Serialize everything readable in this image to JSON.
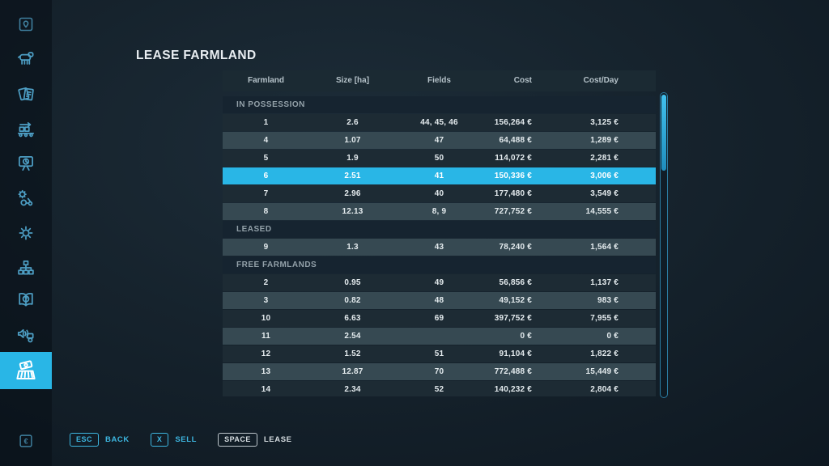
{
  "title": "LEASE FARMLAND",
  "colors": {
    "accent": "#29b6e6",
    "selected_row_bg": "#29b6e6",
    "row_dark": "#1d2b34",
    "row_light": "#364952",
    "sidebar_icon": "#4d9ec4",
    "key_accent": "#3db6e0",
    "key_neutral": "#d5dce0"
  },
  "sidebar": {
    "items": [
      {
        "icon": "map-icon",
        "selected": false,
        "dim": true
      },
      {
        "icon": "animals-icon",
        "selected": false,
        "dim": false
      },
      {
        "icon": "contracts-icon",
        "selected": false,
        "dim": false
      },
      {
        "icon": "production-icon",
        "selected": false,
        "dim": false
      },
      {
        "icon": "statistics-icon",
        "selected": false,
        "dim": false
      },
      {
        "icon": "garage-icon",
        "selected": false,
        "dim": false
      },
      {
        "icon": "settings-icon",
        "selected": false,
        "dim": false
      },
      {
        "icon": "farms-icon",
        "selected": false,
        "dim": false
      },
      {
        "icon": "help-icon",
        "selected": false,
        "dim": false
      },
      {
        "icon": "radio-icon",
        "selected": false,
        "dim": false
      },
      {
        "icon": "farmland-icon",
        "selected": true,
        "dim": false
      },
      {
        "icon": "money-icon",
        "selected": false,
        "dim": true
      }
    ]
  },
  "table": {
    "columns": [
      "Farmland",
      "Size [ha]",
      "Fields",
      "Cost",
      "Cost/Day"
    ],
    "sections": [
      {
        "label": "IN POSSESSION",
        "rows": [
          {
            "farmland": "1",
            "size": "2.6",
            "fields": "44, 45, 46",
            "cost": "156,264 €",
            "cost_day": "3,125 €",
            "shade": "dark",
            "selected": false
          },
          {
            "farmland": "4",
            "size": "1.07",
            "fields": "47",
            "cost": "64,488 €",
            "cost_day": "1,289 €",
            "shade": "light",
            "selected": false
          },
          {
            "farmland": "5",
            "size": "1.9",
            "fields": "50",
            "cost": "114,072 €",
            "cost_day": "2,281 €",
            "shade": "dark",
            "selected": false
          },
          {
            "farmland": "6",
            "size": "2.51",
            "fields": "41",
            "cost": "150,336 €",
            "cost_day": "3,006 €",
            "shade": "light",
            "selected": true
          },
          {
            "farmland": "7",
            "size": "2.96",
            "fields": "40",
            "cost": "177,480 €",
            "cost_day": "3,549 €",
            "shade": "dark",
            "selected": false
          },
          {
            "farmland": "8",
            "size": "12.13",
            "fields": "8, 9",
            "cost": "727,752 €",
            "cost_day": "14,555 €",
            "shade": "light",
            "selected": false
          }
        ]
      },
      {
        "label": "LEASED",
        "rows": [
          {
            "farmland": "9",
            "size": "1.3",
            "fields": "43",
            "cost": "78,240 €",
            "cost_day": "1,564 €",
            "shade": "light",
            "selected": false
          }
        ]
      },
      {
        "label": "FREE FARMLANDS",
        "rows": [
          {
            "farmland": "2",
            "size": "0.95",
            "fields": "49",
            "cost": "56,856 €",
            "cost_day": "1,137 €",
            "shade": "dark",
            "selected": false
          },
          {
            "farmland": "3",
            "size": "0.82",
            "fields": "48",
            "cost": "49,152 €",
            "cost_day": "983 €",
            "shade": "light",
            "selected": false
          },
          {
            "farmland": "10",
            "size": "6.63",
            "fields": "69",
            "cost": "397,752 €",
            "cost_day": "7,955 €",
            "shade": "dark",
            "selected": false
          },
          {
            "farmland": "11",
            "size": "2.54",
            "fields": "",
            "cost": "0 €",
            "cost_day": "0 €",
            "shade": "light",
            "selected": false
          },
          {
            "farmland": "12",
            "size": "1.52",
            "fields": "51",
            "cost": "91,104 €",
            "cost_day": "1,822 €",
            "shade": "dark",
            "selected": false
          },
          {
            "farmland": "13",
            "size": "12.87",
            "fields": "70",
            "cost": "772,488 €",
            "cost_day": "15,449 €",
            "shade": "light",
            "selected": false
          },
          {
            "farmland": "14",
            "size": "2.34",
            "fields": "52",
            "cost": "140,232 €",
            "cost_day": "2,804 €",
            "shade": "dark",
            "selected": false
          }
        ]
      }
    ]
  },
  "footer": {
    "buttons": [
      {
        "key": "ESC",
        "label": "BACK",
        "style": "accent"
      },
      {
        "key": "X",
        "label": "SELL",
        "style": "accent"
      },
      {
        "key": "SPACE",
        "label": "LEASE",
        "style": "neutral"
      }
    ]
  }
}
